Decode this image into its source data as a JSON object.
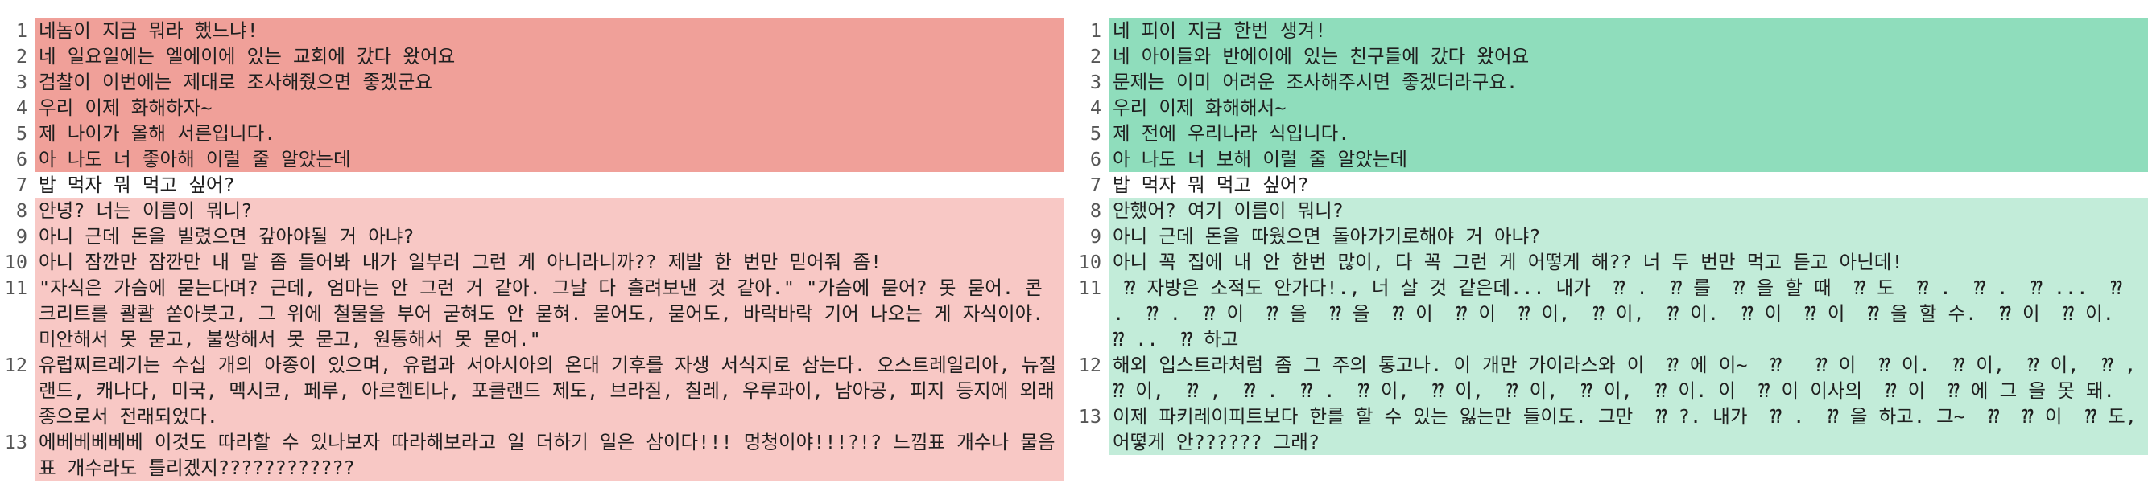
{
  "colors": {
    "removed_block": "#f0a099",
    "removed_highlight": "#ee6f64",
    "removed_soft": "#f8c8c5",
    "added_block": "#8fddbc",
    "added_highlight": "#63cf9e",
    "added_soft": "#c2ecd9"
  },
  "left": {
    "lines": [
      {
        "num": "1",
        "text": "네놈이 지금 뭐라 했느냐!"
      },
      {
        "num": "2",
        "text": "네 일요일에는 엘에이에 있는 교회에 갔다 왔어요"
      },
      {
        "num": "3",
        "text": "검찰이 이번에는 제대로 조사해줬으면 좋겠군요"
      },
      {
        "num": "4",
        "text": "우리 이제 화해하자~"
      },
      {
        "num": "5",
        "text": "제 나이가 올해 서른입니다."
      },
      {
        "num": "6",
        "text": "아 나도 너 좋아해 이럴 줄 알았는데"
      },
      {
        "num": "7",
        "text": "밥 먹자 뭐 먹고 싶어?"
      },
      {
        "num": "8",
        "text": "안녕? 너는 이름이 뭐니?"
      },
      {
        "num": "9",
        "text": "아니 근데 돈을 빌렸으면 갚아야될 거 아냐?"
      },
      {
        "num": "10",
        "text": "아니 잠깐만 잠깐만 내 말 좀 들어봐 내가 일부러 그런 게 아니라니까?? 제발 한 번만 믿어줘 좀!"
      },
      {
        "num": "11",
        "text": "\"자식은 가슴에 묻는다며? 근데, 엄마는 안 그런 거 같아. 그날 다 흘려보낸 것 같아.\" \"가슴에 묻어? 못 묻어. 콘크리트를 콸콸 쏟아붓고, 그 위에 철물을 부어 굳혀도 안 묻혀. 묻어도, 묻어도, 바락바락 기어 나오는 게 자식이야. 미안해서 못 묻고, 불쌍해서 못 묻고, 원통해서 못 묻어.\""
      },
      {
        "num": "12",
        "text": "유럽찌르레기는 수십 개의 아종이 있으며, 유럽과 서아시아의 온대 기후를 자생 서식지로 삼는다. 오스트레일리아, 뉴질랜드, 캐나다, 미국, 멕시코, 페루, 아르헨티나, 포클랜드 제도, 브라질, 칠레, 우루과이, 남아공, 피지 등지에 외래종으로서 전래되었다."
      },
      {
        "num": "13",
        "text": "에베베베베베 이것도 따라할 수 있나보자 따라해보라고 일 더하기 일은 삼이다!!! 멍청이야!!!?!? 느낌표 개수나 물음표 개수라도 틀리겠지????????????"
      }
    ]
  },
  "right": {
    "lines": [
      {
        "num": "1",
        "text": "네 피이 지금 한번 생겨!"
      },
      {
        "num": "2",
        "text": "네 아이들와 반에이에 있는 친구들에 갔다 왔어요"
      },
      {
        "num": "3",
        "text": "문제는 이미 어려운 조사해주시면 좋겠더라구요."
      },
      {
        "num": "4",
        "text": "우리 이제 화해해서~"
      },
      {
        "num": "5",
        "text": "제 전에 우리나라 식입니다."
      },
      {
        "num": "6",
        "text": "아 나도 너 보해 이럴 줄 알았는데"
      },
      {
        "num": "7",
        "text": "밥 먹자 뭐 먹고 싶어?"
      },
      {
        "num": "8",
        "text": "안했어? 여기 이름이 뭐니?"
      },
      {
        "num": "9",
        "text": "아니 근데 돈을 따웠으면 돌아가기로해야 거 아냐?"
      },
      {
        "num": "10",
        "text": "아니 꼭 집에 내 안 한번 많이, 다 꼭 그런 게 어떻게 해?? 너 두 번만 먹고 듣고 아닌데!"
      },
      {
        "num": "11",
        "text": " ⁇ 자방은 소적도 안가다!., 너 살 것 같은데... 내가  ⁇ .  ⁇ 를  ⁇ 을 할 때  ⁇ 도  ⁇ .  ⁇ .  ⁇ ...  ⁇ .  ⁇ .  ⁇ 이  ⁇ 을  ⁇ 을  ⁇ 이  ⁇ 이  ⁇ 이,  ⁇ 이,  ⁇ 이.  ⁇ 이  ⁇ 이  ⁇ 을 할 수.  ⁇ 이  ⁇ 이.  ⁇ ..  ⁇ 하고"
      },
      {
        "num": "12",
        "text": "해외 입스트라처럼 좀 그 주의 통고나. 이 개만 가이라스와 이  ⁇ 에 이~  ⁇   ⁇ 이  ⁇ 이.  ⁇ 이,  ⁇ 이,  ⁇ ,  ⁇ 이,  ⁇ ,  ⁇ .  ⁇ .  ⁇ 이,  ⁇ 이,  ⁇ 이,  ⁇ 이,  ⁇ 이. 이  ⁇ 이 이사의  ⁇ 이  ⁇ 에 그 을 못 돼."
      },
      {
        "num": "13",
        "text": "이제 파키레이피트보다 한를 할 수 있는 잃는만 들이도. 그만  ⁇ ?. 내가  ⁇ .  ⁇ 을 하고. 그~  ⁇  ⁇ 이  ⁇ 도, 어떻게 안?????? 그래?"
      }
    ]
  }
}
